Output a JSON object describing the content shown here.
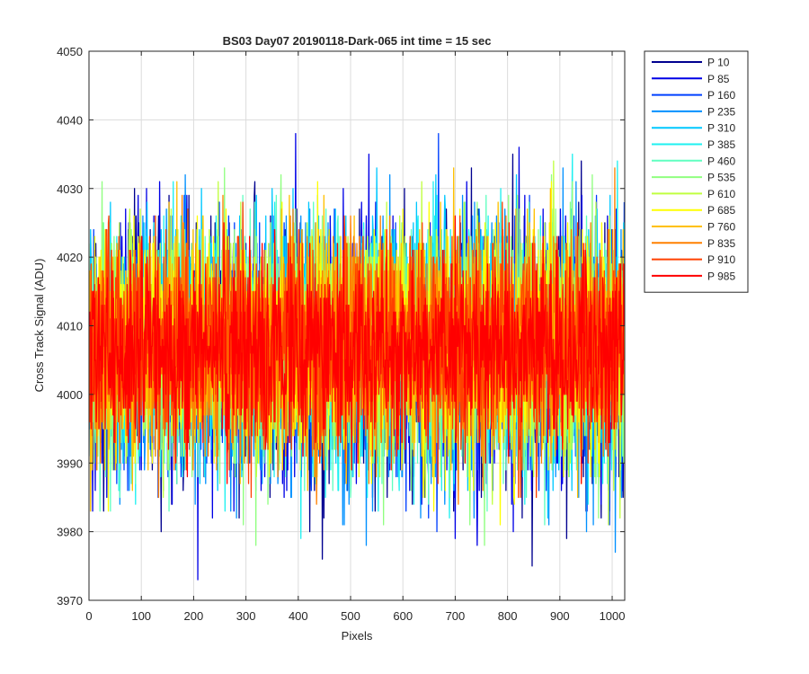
{
  "chart_data": {
    "type": "line",
    "title": "BS03 Day07 20190118-Dark-065 int time = 15 sec",
    "xlabel": "Pixels",
    "ylabel": "Cross Track Signal (ADU)",
    "xlim": [
      0,
      1024
    ],
    "ylim": [
      3970,
      4050
    ],
    "xticks": [
      0,
      100,
      200,
      300,
      400,
      500,
      600,
      700,
      800,
      900,
      1000
    ],
    "yticks": [
      3970,
      3980,
      3990,
      4000,
      4010,
      4020,
      4030,
      4040,
      4050
    ],
    "grid": true,
    "legend_position": "outside-top-right",
    "x_points": 1024,
    "series": [
      {
        "name": "P 10",
        "color": "#00008f",
        "mean": 4006,
        "sd": 10
      },
      {
        "name": "P 85",
        "color": "#0000e6",
        "mean": 4006,
        "sd": 10
      },
      {
        "name": "P 160",
        "color": "#0040ff",
        "mean": 4006,
        "sd": 9.5
      },
      {
        "name": "P 235",
        "color": "#0090ff",
        "mean": 4006,
        "sd": 9.5
      },
      {
        "name": "P 310",
        "color": "#00c8ff",
        "mean": 4007,
        "sd": 9
      },
      {
        "name": "P 385",
        "color": "#1ef0f0",
        "mean": 4007,
        "sd": 9
      },
      {
        "name": "P 460",
        "color": "#60ffc0",
        "mean": 4007,
        "sd": 9
      },
      {
        "name": "P 535",
        "color": "#90ff80",
        "mean": 4007,
        "sd": 9
      },
      {
        "name": "P 610",
        "color": "#c0ff40",
        "mean": 4007,
        "sd": 8.5
      },
      {
        "name": "P 685",
        "color": "#ffff00",
        "mean": 4007,
        "sd": 8.5
      },
      {
        "name": "P 760",
        "color": "#ffc000",
        "mean": 4007,
        "sd": 8.5
      },
      {
        "name": "P 835",
        "color": "#ff8000",
        "mean": 4007,
        "sd": 8
      },
      {
        "name": "P 910",
        "color": "#ff4000",
        "mean": 4007,
        "sd": 7.5
      },
      {
        "name": "P 985",
        "color": "#ff0000",
        "mean": 4007,
        "sd": 7
      }
    ]
  }
}
